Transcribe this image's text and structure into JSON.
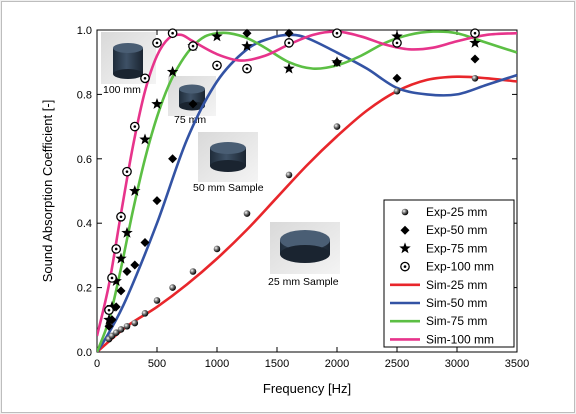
{
  "chart_data": {
    "type": "scatter",
    "title": "",
    "xlabel": "Frequency [Hz]",
    "ylabel": "Sound Absorption Coefficient [-]",
    "xlim": [
      0,
      3500
    ],
    "ylim": [
      0,
      1.0
    ],
    "x_ticks": [
      "0",
      "500",
      "1000",
      "1500",
      "2000",
      "2500",
      "3000",
      "3500"
    ],
    "y_ticks": [
      "0.0",
      "0.2",
      "0.4",
      "0.6",
      "0.8",
      "1.0"
    ],
    "legend_position": "lower-right",
    "grid": false,
    "series": [
      {
        "name": "Exp-25 mm",
        "kind": "points",
        "marker": "circle-filled",
        "x": [
          100,
          125,
          160,
          200,
          250,
          315,
          400,
          500,
          630,
          800,
          1000,
          1250,
          1600,
          2000,
          2500,
          3150
        ],
        "y": [
          0.04,
          0.05,
          0.06,
          0.07,
          0.08,
          0.09,
          0.12,
          0.16,
          0.2,
          0.25,
          0.32,
          0.43,
          0.55,
          0.7,
          0.81,
          0.85
        ]
      },
      {
        "name": "Exp-50 mm",
        "kind": "points",
        "marker": "diamond-filled",
        "x": [
          100,
          125,
          160,
          200,
          250,
          315,
          400,
          500,
          630,
          800,
          1000,
          1250,
          1600,
          2000,
          2500,
          3150
        ],
        "y": [
          0.08,
          0.1,
          0.14,
          0.19,
          0.25,
          0.27,
          0.34,
          0.47,
          0.6,
          0.77,
          0.89,
          0.99,
          0.99,
          0.9,
          0.85,
          0.91
        ]
      },
      {
        "name": "Exp-75 mm",
        "kind": "points",
        "marker": "star-filled",
        "x": [
          100,
          125,
          160,
          200,
          250,
          315,
          400,
          500,
          630,
          800,
          1000,
          1250,
          1600,
          2000,
          2500,
          3150
        ],
        "y": [
          0.1,
          0.14,
          0.22,
          0.29,
          0.37,
          0.5,
          0.66,
          0.77,
          0.87,
          0.95,
          0.98,
          0.95,
          0.88,
          0.9,
          0.98,
          0.96
        ]
      },
      {
        "name": "Exp-100 mm",
        "kind": "points",
        "marker": "circle-dot",
        "x": [
          100,
          125,
          160,
          200,
          250,
          315,
          400,
          500,
          630,
          800,
          1000,
          1250,
          1600,
          2000,
          2500,
          3150
        ],
        "y": [
          0.13,
          0.23,
          0.32,
          0.42,
          0.56,
          0.7,
          0.85,
          0.96,
          0.99,
          0.95,
          0.89,
          0.88,
          0.96,
          0.99,
          0.96,
          0.99
        ]
      },
      {
        "name": "Sim-25 mm",
        "kind": "line",
        "color": "#e8262b",
        "x": [
          0,
          250,
          500,
          750,
          1000,
          1250,
          1500,
          1750,
          2000,
          2250,
          2500,
          2750,
          3000,
          3250,
          3500
        ],
        "y": [
          0.0,
          0.08,
          0.14,
          0.21,
          0.29,
          0.38,
          0.48,
          0.58,
          0.67,
          0.75,
          0.81,
          0.845,
          0.855,
          0.85,
          0.84
        ]
      },
      {
        "name": "Sim-50 mm",
        "kind": "line",
        "color": "#3353a4",
        "x": [
          0,
          100,
          250,
          500,
          750,
          1000,
          1250,
          1450,
          1600,
          1750,
          2000,
          2250,
          2500,
          2750,
          3000,
          3250,
          3500
        ],
        "y": [
          0.0,
          0.06,
          0.17,
          0.4,
          0.66,
          0.84,
          0.94,
          0.975,
          0.985,
          0.975,
          0.93,
          0.88,
          0.82,
          0.8,
          0.8,
          0.83,
          0.86
        ]
      },
      {
        "name": "Sim-75 mm",
        "kind": "line",
        "color": "#5cbf44",
        "x": [
          0,
          100,
          200,
          300,
          400,
          500,
          600,
          700,
          800,
          900,
          1000,
          1100,
          1250,
          1400,
          1600,
          1800,
          2000,
          2200,
          2400,
          2600,
          2800,
          3000,
          3250,
          3500
        ],
        "y": [
          0.0,
          0.1,
          0.26,
          0.44,
          0.6,
          0.73,
          0.83,
          0.9,
          0.95,
          0.98,
          0.99,
          0.99,
          0.975,
          0.945,
          0.9,
          0.88,
          0.89,
          0.92,
          0.96,
          0.985,
          0.995,
          0.99,
          0.96,
          0.93
        ]
      },
      {
        "name": "Sim-100 mm",
        "kind": "line",
        "color": "#e7348b",
        "x": [
          0,
          100,
          200,
          300,
          400,
          500,
          600,
          700,
          800,
          1000,
          1200,
          1400,
          1600,
          1800,
          2000,
          2200,
          2400,
          2600,
          2800,
          3000,
          3250,
          3500
        ],
        "y": [
          0.05,
          0.21,
          0.43,
          0.64,
          0.81,
          0.92,
          0.975,
          0.985,
          0.965,
          0.925,
          0.905,
          0.92,
          0.955,
          0.985,
          0.995,
          0.98,
          0.955,
          0.94,
          0.945,
          0.965,
          0.985,
          0.99
        ]
      }
    ],
    "sample_captions": {
      "s100": "100 mm",
      "s75": "75 mm",
      "s50": "50 mm Sample",
      "s25": "25 mm Sample"
    }
  }
}
